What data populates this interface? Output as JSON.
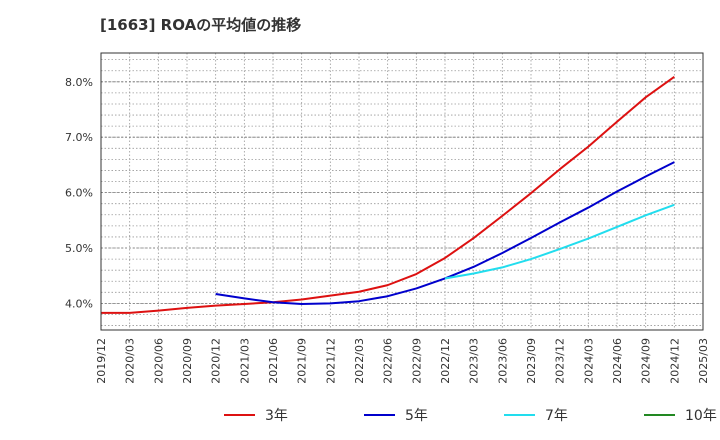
{
  "chart_data": {
    "type": "line",
    "title": "[1663]  ROAの平均値の推移",
    "xlabel": "",
    "ylabel": "",
    "x_ticks": [
      "2019/12",
      "2020/03",
      "2020/06",
      "2020/09",
      "2020/12",
      "2021/03",
      "2021/06",
      "2021/09",
      "2021/12",
      "2022/03",
      "2022/06",
      "2022/09",
      "2022/12",
      "2023/03",
      "2023/06",
      "2023/09",
      "2023/12",
      "2024/03",
      "2024/06",
      "2024/09",
      "2024/12",
      "2025/03"
    ],
    "y_ticks": [
      4.0,
      5.0,
      6.0,
      7.0,
      8.0
    ],
    "y_tick_labels": [
      "4.0%",
      "5.0%",
      "6.0%",
      "7.0%",
      "8.0%"
    ],
    "ylim": [
      3.52,
      8.52
    ],
    "grid": true,
    "legend_position": "bottom",
    "series": [
      {
        "name": "3年",
        "color": "#dd1111",
        "x": [
          "2019/12",
          "2020/03",
          "2020/06",
          "2020/09",
          "2020/12",
          "2021/03",
          "2021/06",
          "2021/09",
          "2021/12",
          "2022/03",
          "2022/06",
          "2022/09",
          "2022/12",
          "2023/03",
          "2023/06",
          "2023/09",
          "2023/12",
          "2024/03",
          "2024/06",
          "2024/09",
          "2024/12"
        ],
        "values": [
          3.83,
          3.83,
          3.87,
          3.92,
          3.96,
          3.99,
          4.02,
          4.07,
          4.14,
          4.21,
          4.33,
          4.53,
          4.82,
          5.18,
          5.58,
          5.99,
          6.42,
          6.83,
          7.28,
          7.72,
          8.09
        ]
      },
      {
        "name": "5年",
        "color": "#0000cc",
        "x": [
          "2020/12",
          "2021/03",
          "2021/06",
          "2021/09",
          "2021/12",
          "2022/03",
          "2022/06",
          "2022/09",
          "2022/12",
          "2023/03",
          "2023/06",
          "2023/09",
          "2023/12",
          "2024/03",
          "2024/06",
          "2024/09",
          "2024/12"
        ],
        "values": [
          4.17,
          4.09,
          4.02,
          3.99,
          4.0,
          4.04,
          4.13,
          4.27,
          4.45,
          4.66,
          4.91,
          5.18,
          5.46,
          5.73,
          6.02,
          6.29,
          6.55
        ]
      },
      {
        "name": "7年",
        "color": "#22ddee",
        "x": [
          "2022/12",
          "2023/03",
          "2023/06",
          "2023/09",
          "2023/12",
          "2024/03",
          "2024/06",
          "2024/09",
          "2024/12"
        ],
        "values": [
          4.45,
          4.54,
          4.65,
          4.8,
          4.98,
          5.17,
          5.38,
          5.59,
          5.78
        ]
      },
      {
        "name": "10年",
        "color": "#228822",
        "x": [],
        "values": []
      }
    ]
  }
}
